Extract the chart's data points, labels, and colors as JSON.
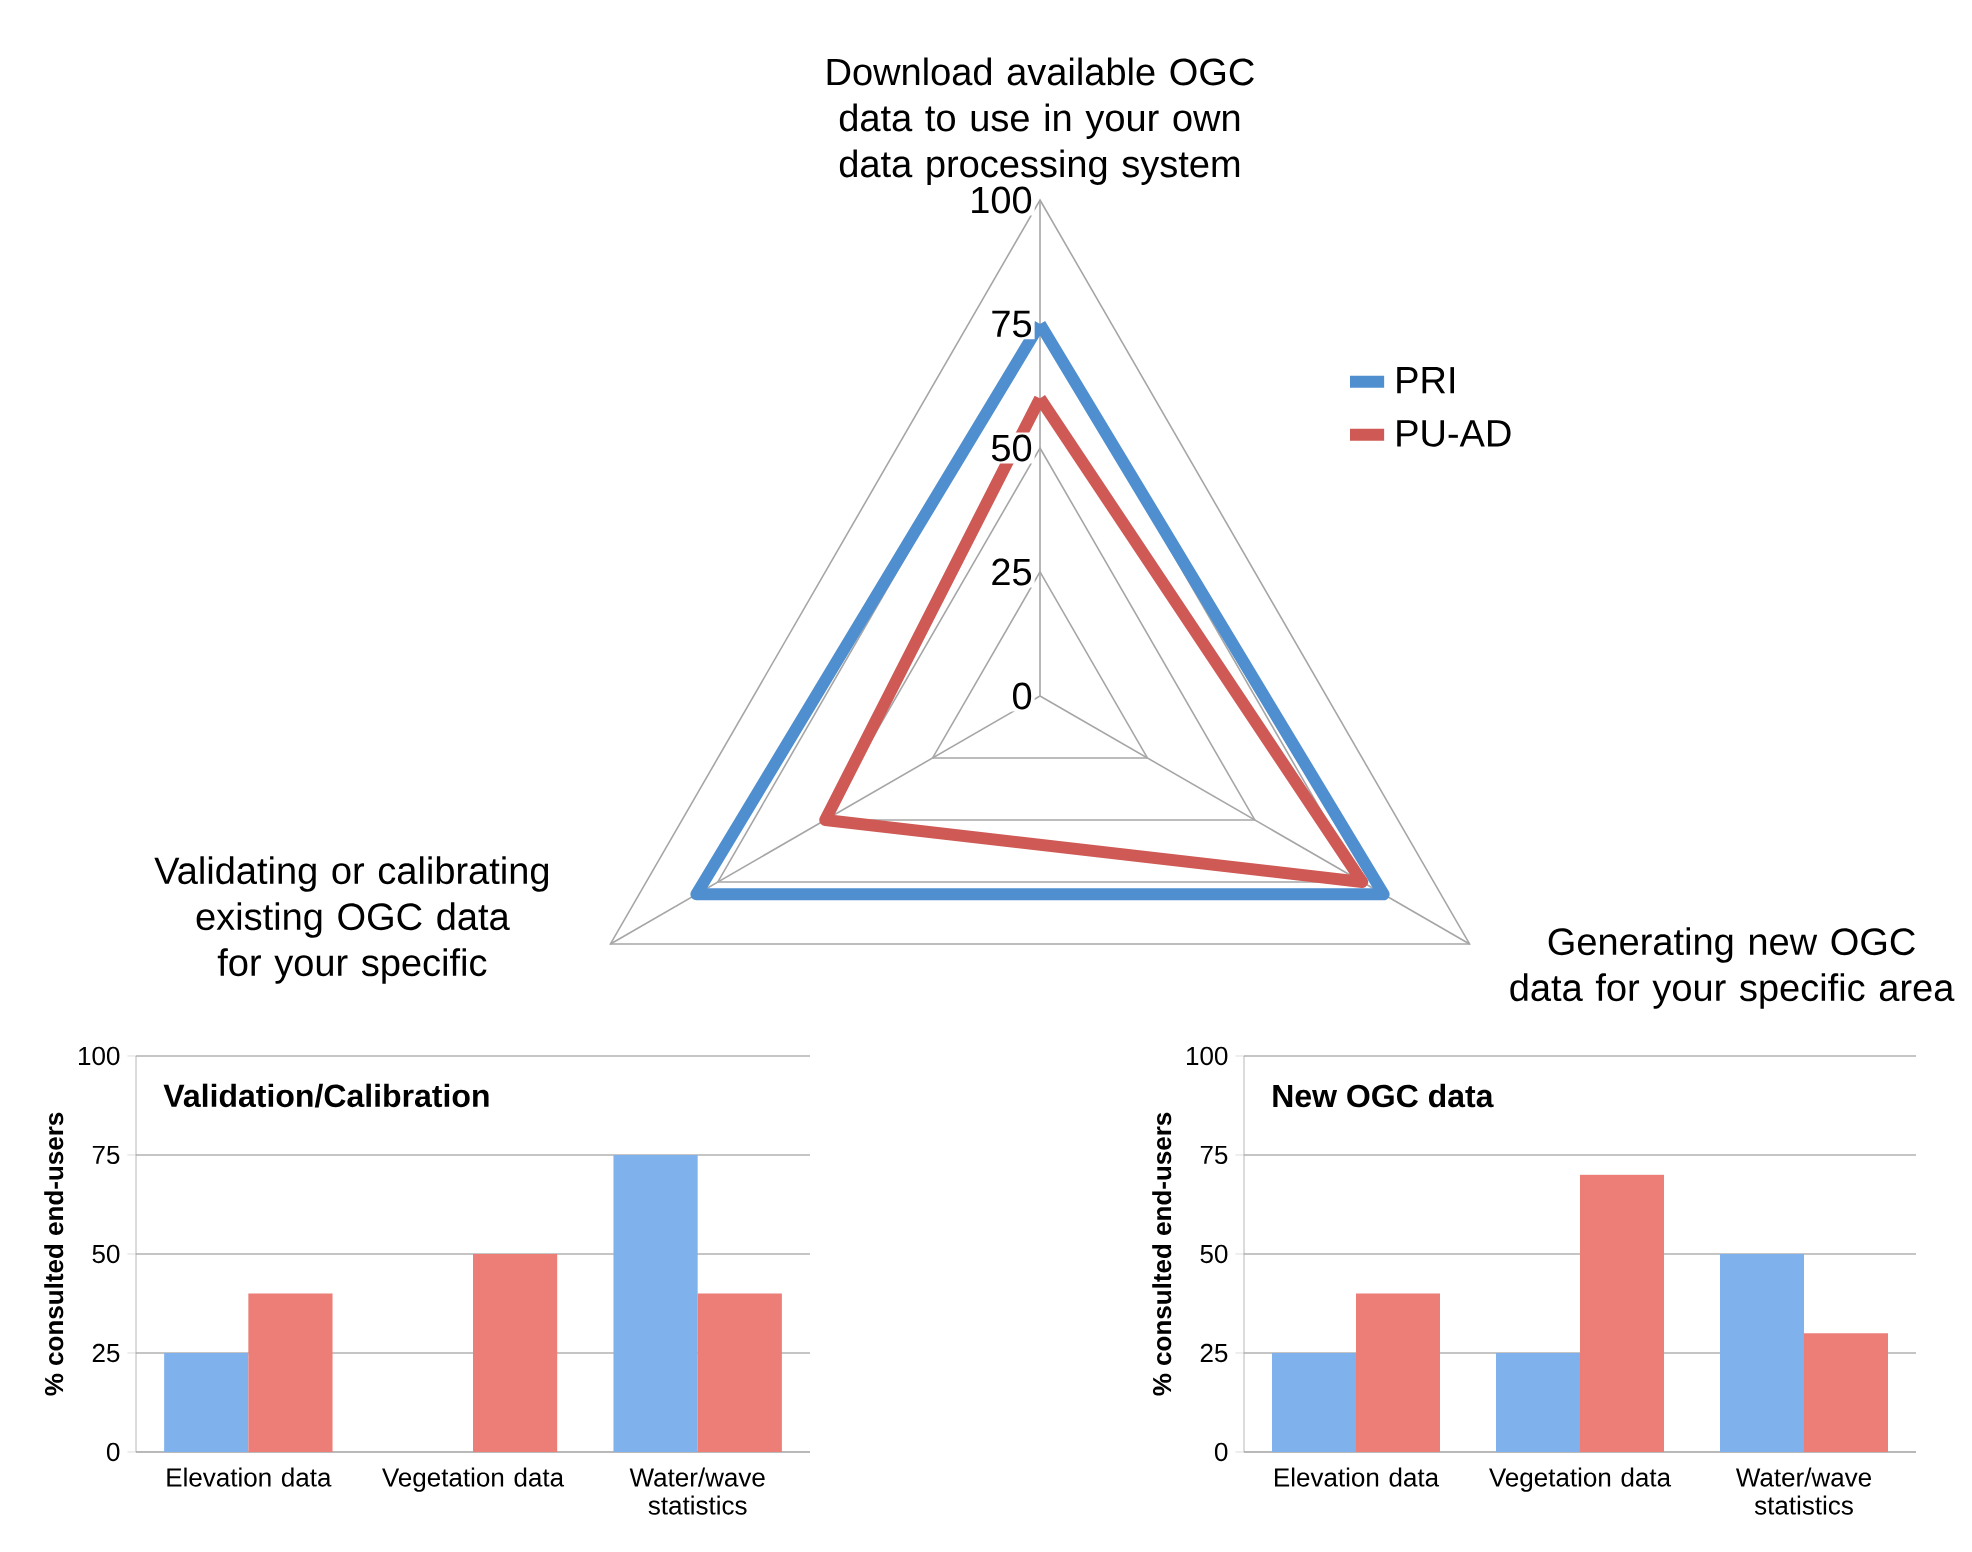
{
  "chart_data": [
    {
      "type": "radar",
      "categories": [
        "Download available OGC data to use in your own data processing system",
        "Generating new OGC data for your specific area",
        "Validating or calibrating existing OGC data for your specific"
      ],
      "series": [
        {
          "name": "PRI",
          "color": "#4f8fcf",
          "values": [
            75,
            80,
            80
          ]
        },
        {
          "name": "PU-AD",
          "color": "#cf5a55",
          "values": [
            60,
            75,
            50
          ]
        }
      ],
      "ylim": [
        0,
        100
      ],
      "yticks": [
        0,
        25,
        50,
        75,
        100
      ],
      "grid": true,
      "legend": "right"
    },
    {
      "type": "bar",
      "title": "Validation/Calibration",
      "ylabel": "% consulted end-users",
      "categories": [
        "Elevation data",
        "Vegetation data",
        "Water/wave statistics"
      ],
      "series": [
        {
          "color": "#7fb2ec",
          "values": [
            25,
            0,
            75
          ]
        },
        {
          "color": "#ec7d77",
          "values": [
            40,
            50,
            40
          ]
        }
      ],
      "ylim": [
        0,
        100
      ],
      "yticks": [
        0,
        25,
        50,
        75,
        100
      ],
      "grid": "y"
    },
    {
      "type": "bar",
      "title": "New OGC data",
      "ylabel": "% consulted end-users",
      "categories": [
        "Elevation data",
        "Vegetation data",
        "Water/wave statistics"
      ],
      "series": [
        {
          "color": "#7fb2ec",
          "values": [
            25,
            25,
            50
          ]
        },
        {
          "color": "#ec7d77",
          "values": [
            40,
            70,
            30
          ]
        }
      ],
      "ylim": [
        0,
        100
      ],
      "yticks": [
        0,
        25,
        50,
        75,
        100
      ],
      "grid": "y"
    }
  ]
}
